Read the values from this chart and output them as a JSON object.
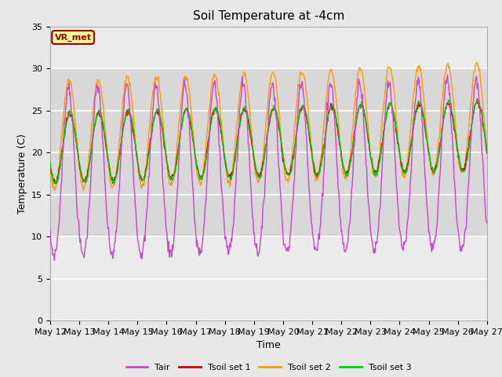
{
  "title": "Soil Temperature at -4cm",
  "xlabel": "Time",
  "ylabel": "Temperature (C)",
  "ylim": [
    0,
    35
  ],
  "x_tick_labels": [
    "May 12",
    "May 13",
    "May 14",
    "May 15",
    "May 16",
    "May 17",
    "May 18",
    "May 19",
    "May 20",
    "May 21",
    "May 22",
    "May 23",
    "May 24",
    "May 25",
    "May 26",
    "May 27"
  ],
  "annotation_text": "VR_met",
  "annotation_color": "#990000",
  "annotation_bg": "#ffff99",
  "colors": {
    "Tair": "#cc44cc",
    "Tsoil set 1": "#cc0000",
    "Tsoil set 2": "#ff9900",
    "Tsoil set 3": "#00cc00"
  },
  "background_color": "#e8e8e8",
  "plot_bg_color": "#ebebeb",
  "shaded_band_color": "#d8d8d8",
  "grid_color": "#ffffff",
  "title_fontsize": 11,
  "axis_fontsize": 9,
  "tick_fontsize": 8
}
